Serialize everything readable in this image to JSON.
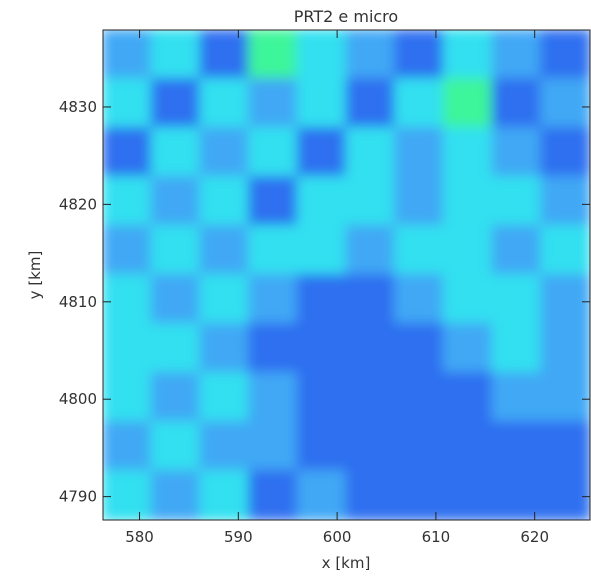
{
  "chart_data": {
    "type": "heatmap",
    "title": "PRT2 e micro",
    "x_label": "x [km]",
    "y_label": "y [km]",
    "xlim": [
      576.3,
      625.6
    ],
    "ylim": [
      4787.6,
      4837.9
    ],
    "xticks": [
      580,
      590,
      600,
      610,
      620
    ],
    "yticks": [
      4790,
      4800,
      4810,
      4820,
      4830
    ],
    "level_colors": [
      "#1a2fd6",
      "#2f6ff0",
      "#3fa8f5",
      "#30e0f0",
      "#3cf59a"
    ],
    "z": [
      [
        2,
        3,
        1,
        4,
        3,
        2,
        1,
        3,
        2,
        1
      ],
      [
        3,
        1,
        3,
        2,
        3,
        1,
        3,
        4,
        1,
        2
      ],
      [
        1,
        3,
        2,
        3,
        1,
        3,
        2,
        3,
        2,
        1
      ],
      [
        3,
        2,
        3,
        1,
        3,
        3,
        2,
        3,
        3,
        2
      ],
      [
        2,
        3,
        2,
        3,
        3,
        2,
        3,
        3,
        2,
        3
      ],
      [
        3,
        2,
        3,
        2,
        1,
        1,
        2,
        3,
        3,
        2
      ],
      [
        3,
        3,
        2,
        1,
        1,
        1,
        1,
        2,
        3,
        2
      ],
      [
        3,
        2,
        3,
        2,
        1,
        1,
        1,
        1,
        2,
        2
      ],
      [
        2,
        3,
        2,
        2,
        1,
        1,
        1,
        1,
        1,
        1
      ],
      [
        3,
        2,
        3,
        1,
        2,
        1,
        1,
        1,
        1,
        1
      ]
    ]
  }
}
